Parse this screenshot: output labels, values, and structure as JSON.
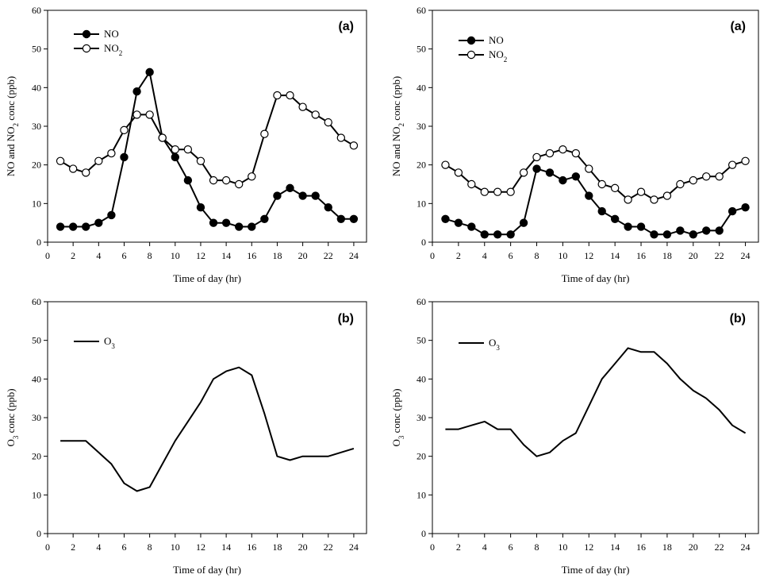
{
  "colors": {
    "axis": "#000000",
    "line": "#000000",
    "marker_filled": "#000000",
    "marker_open": "#ffffff"
  },
  "chart_data": [
    {
      "id": "top-left",
      "type": "line",
      "panel_tag": "(a)",
      "xlabel": "Time of day (hr)",
      "ylabel_html": "NO and NO<tspan baseline-shift=\"sub\" font-size=\"9\">2</tspan> conc (ppb)",
      "ylabel": "NO and NO2 conc (ppb)",
      "xlim": [
        0,
        25
      ],
      "ylim": [
        0,
        60
      ],
      "xticks": [
        0,
        2,
        4,
        6,
        8,
        10,
        12,
        14,
        16,
        18,
        20,
        22,
        24
      ],
      "yticks": [
        0,
        10,
        20,
        30,
        40,
        50,
        60
      ],
      "legend_position": "top-left",
      "x": [
        1,
        2,
        3,
        4,
        5,
        6,
        7,
        8,
        9,
        10,
        11,
        12,
        13,
        14,
        15,
        16,
        17,
        18,
        19,
        20,
        21,
        22,
        23,
        24
      ],
      "series": [
        {
          "name": "NO",
          "name_html": "NO",
          "marker": "filled",
          "values": [
            4,
            4,
            4,
            5,
            7,
            22,
            39,
            44,
            27,
            22,
            16,
            9,
            5,
            5,
            4,
            4,
            6,
            12,
            14,
            12,
            12,
            9,
            6,
            6
          ]
        },
        {
          "name": "NO2",
          "name_html": "NO<tspan baseline-shift=\"sub\" font-size=\"9\">2</tspan>",
          "marker": "open",
          "values": [
            21,
            19,
            18,
            21,
            23,
            29,
            33,
            33,
            27,
            24,
            24,
            21,
            16,
            16,
            15,
            17,
            28,
            38,
            38,
            35,
            33,
            31,
            27,
            25
          ]
        }
      ]
    },
    {
      "id": "top-right",
      "type": "line",
      "panel_tag": "(a)",
      "xlabel": "Time of day (hr)",
      "ylabel_html": "NO and NO<tspan baseline-shift=\"sub\" font-size=\"9\">2</tspan> conc (ppb)",
      "ylabel": "NO and NO2 conc (ppb)",
      "xlim": [
        0,
        25
      ],
      "ylim": [
        0,
        60
      ],
      "xticks": [
        0,
        2,
        4,
        6,
        8,
        10,
        12,
        14,
        16,
        18,
        20,
        22,
        24
      ],
      "yticks": [
        0,
        10,
        20,
        30,
        40,
        50,
        60
      ],
      "legend_position": "top-left",
      "x": [
        1,
        2,
        3,
        4,
        5,
        6,
        7,
        8,
        9,
        10,
        11,
        12,
        13,
        14,
        15,
        16,
        17,
        18,
        19,
        20,
        21,
        22,
        23,
        24
      ],
      "series": [
        {
          "name": "NO",
          "name_html": "NO",
          "marker": "filled",
          "values": [
            6,
            5,
            4,
            2,
            2,
            2,
            5,
            19,
            18,
            16,
            17,
            12,
            8,
            6,
            4,
            4,
            2,
            2,
            3,
            2,
            3,
            3,
            8,
            9
          ]
        },
        {
          "name": "NO2",
          "name_html": "NO<tspan baseline-shift=\"sub\" font-size=\"9\">2</tspan>",
          "marker": "open",
          "values": [
            20,
            18,
            15,
            13,
            13,
            13,
            18,
            22,
            23,
            24,
            23,
            19,
            15,
            14,
            11,
            13,
            11,
            12,
            15,
            16,
            17,
            17,
            20,
            21
          ]
        }
      ]
    },
    {
      "id": "bottom-left",
      "type": "line",
      "panel_tag": "(b)",
      "xlabel": "Time of day (hr)",
      "ylabel_html": "O<tspan baseline-shift=\"sub\" font-size=\"9\">3</tspan> conc (ppb)",
      "ylabel": "O3 conc (ppb)",
      "xlim": [
        0,
        25
      ],
      "ylim": [
        0,
        60
      ],
      "xticks": [
        0,
        2,
        4,
        6,
        8,
        10,
        12,
        14,
        16,
        18,
        20,
        22,
        24
      ],
      "yticks": [
        0,
        10,
        20,
        30,
        40,
        50,
        60
      ],
      "legend_position": "top-left",
      "x": [
        1,
        2,
        3,
        4,
        5,
        6,
        7,
        8,
        9,
        10,
        11,
        12,
        13,
        14,
        15,
        16,
        17,
        18,
        19,
        20,
        21,
        22,
        23,
        24
      ],
      "series": [
        {
          "name": "O3",
          "name_html": "O<tspan baseline-shift=\"sub\" font-size=\"9\">3</tspan>",
          "marker": "none",
          "values": [
            24,
            24,
            24,
            21,
            18,
            13,
            11,
            12,
            18,
            24,
            29,
            34,
            40,
            42,
            43,
            41,
            31,
            20,
            19,
            20,
            20,
            20,
            21,
            22
          ]
        }
      ]
    },
    {
      "id": "bottom-right",
      "type": "line",
      "panel_tag": "(b)",
      "xlabel": "Time of day (hr)",
      "ylabel_html": "O<tspan baseline-shift=\"sub\" font-size=\"9\">3</tspan> conc (ppb)",
      "ylabel": "O3 conc (ppb)",
      "xlim": [
        0,
        25
      ],
      "ylim": [
        0,
        60
      ],
      "xticks": [
        0,
        2,
        4,
        6,
        8,
        10,
        12,
        14,
        16,
        18,
        20,
        22,
        24
      ],
      "yticks": [
        0,
        10,
        20,
        30,
        40,
        50,
        60
      ],
      "legend_position": "top-left",
      "x": [
        1,
        2,
        3,
        4,
        5,
        6,
        7,
        8,
        9,
        10,
        11,
        12,
        13,
        14,
        15,
        16,
        17,
        18,
        19,
        20,
        21,
        22,
        23,
        24
      ],
      "series": [
        {
          "name": "O3",
          "name_html": "O<tspan baseline-shift=\"sub\" font-size=\"9\">3</tspan>",
          "marker": "none",
          "values": [
            27,
            27,
            28,
            29,
            27,
            27,
            23,
            20,
            21,
            24,
            26,
            33,
            40,
            44,
            48,
            47,
            47,
            44,
            40,
            37,
            35,
            32,
            28,
            26
          ]
        }
      ]
    }
  ]
}
